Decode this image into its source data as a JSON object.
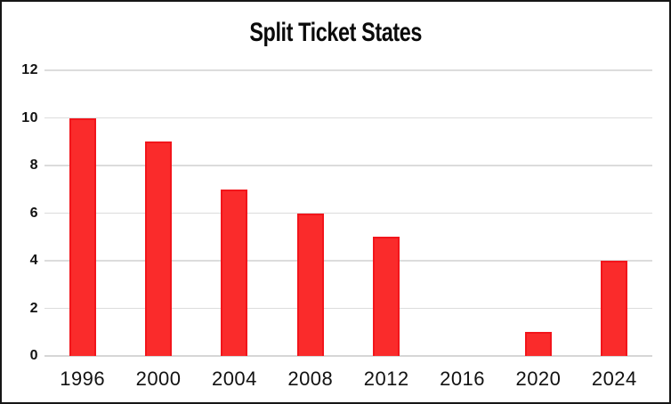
{
  "window": {
    "background_color": "#ffffff",
    "frame_border_color": "#161616"
  },
  "chart_data": {
    "type": "bar",
    "title": "Split Ticket States",
    "categories": [
      "1996",
      "2000",
      "2004",
      "2008",
      "2012",
      "2016",
      "2020",
      "2024"
    ],
    "values": [
      10,
      9,
      7,
      6,
      5,
      0,
      1,
      4
    ],
    "xlabel": "",
    "ylabel": "",
    "y_ticks": [
      0,
      2,
      4,
      6,
      8,
      10,
      12
    ],
    "ylim": [
      0,
      12
    ],
    "grid": "horizontal",
    "legend": "none",
    "bar_fill_color": "#fa2b2b",
    "bar_border_color": "#f2151b",
    "gridline_color": "#dcdcdc",
    "axis_text_color": "#121212",
    "title_color": "#0b0b0b"
  }
}
